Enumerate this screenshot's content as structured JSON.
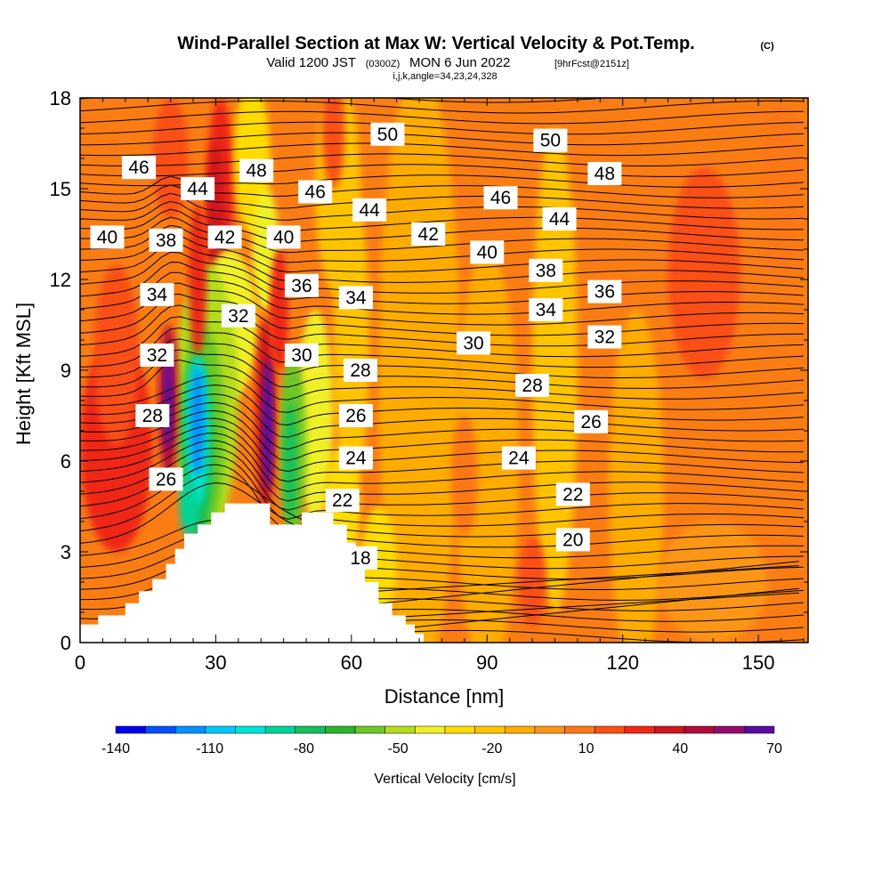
{
  "title": "Wind-Parallel Section at Max W: Vertical Velocity & Pot.Temp.",
  "title_mark": "(C)",
  "subtitle_a": "Valid 1200 JST",
  "subtitle_b": "(0300Z)",
  "subtitle_c": "MON 6 Jun 2022",
  "subtitle_d": "[9hrFcst@2151z]",
  "subtitle_line3": "i,j,k,angle=34,23,24,328",
  "chart_data": {
    "type": "contour",
    "xlabel": "Distance [nm]",
    "ylabel": "Height [Kft MSL]",
    "xlim": [
      0,
      161
    ],
    "ylim": [
      0,
      18
    ],
    "xticks": [
      0,
      30,
      60,
      90,
      120,
      150
    ],
    "yticks": [
      0,
      3,
      6,
      9,
      12,
      15,
      18
    ],
    "colorbar": {
      "label": "Vertical Velocity [cm/s]",
      "tick_labels": [
        "-140",
        "-110",
        "-80",
        "-50",
        "-20",
        "10",
        "40",
        "70"
      ],
      "levels": [
        -140,
        -130,
        -120,
        -110,
        -100,
        -90,
        -80,
        -70,
        -60,
        -50,
        -40,
        -30,
        -20,
        -10,
        0,
        10,
        20,
        30,
        40,
        50,
        60,
        70
      ],
      "colors": [
        "#0000ee",
        "#0050ff",
        "#0090ff",
        "#00c8ff",
        "#00e4d4",
        "#00d39a",
        "#14c05a",
        "#2cb42c",
        "#6cc828",
        "#b4dc1e",
        "#f0f028",
        "#ffdc00",
        "#ffc400",
        "#ffac00",
        "#fc9614",
        "#fc7814",
        "#fa5014",
        "#f02814",
        "#d2141e",
        "#b40a3c",
        "#960a6e",
        "#5a0aa0"
      ]
    },
    "theta_contour_labels": [
      {
        "value": "46",
        "x": 13,
        "y": 15.7
      },
      {
        "value": "44",
        "x": 26,
        "y": 15.0
      },
      {
        "value": "48",
        "x": 39,
        "y": 15.6
      },
      {
        "value": "46",
        "x": 52,
        "y": 14.9
      },
      {
        "value": "50",
        "x": 68,
        "y": 16.8
      },
      {
        "value": "50",
        "x": 104,
        "y": 16.6
      },
      {
        "value": "48",
        "x": 116,
        "y": 15.5
      },
      {
        "value": "46",
        "x": 93,
        "y": 14.7
      },
      {
        "value": "44",
        "x": 64,
        "y": 14.3
      },
      {
        "value": "44",
        "x": 106,
        "y": 14.0
      },
      {
        "value": "40",
        "x": 6,
        "y": 13.4
      },
      {
        "value": "38",
        "x": 19,
        "y": 13.3
      },
      {
        "value": "42",
        "x": 32,
        "y": 13.4
      },
      {
        "value": "40",
        "x": 45,
        "y": 13.4
      },
      {
        "value": "42",
        "x": 77,
        "y": 13.5
      },
      {
        "value": "40",
        "x": 90,
        "y": 12.9
      },
      {
        "value": "38",
        "x": 103,
        "y": 12.3
      },
      {
        "value": "36",
        "x": 116,
        "y": 11.6
      },
      {
        "value": "34",
        "x": 17,
        "y": 11.5
      },
      {
        "value": "36",
        "x": 49,
        "y": 11.8
      },
      {
        "value": "34",
        "x": 61,
        "y": 11.4
      },
      {
        "value": "34",
        "x": 103,
        "y": 11.0
      },
      {
        "value": "32",
        "x": 35,
        "y": 10.8
      },
      {
        "value": "32",
        "x": 116,
        "y": 10.1
      },
      {
        "value": "30",
        "x": 87,
        "y": 9.9
      },
      {
        "value": "32",
        "x": 17,
        "y": 9.5
      },
      {
        "value": "30",
        "x": 49,
        "y": 9.5
      },
      {
        "value": "28",
        "x": 62,
        "y": 9.0
      },
      {
        "value": "28",
        "x": 100,
        "y": 8.5
      },
      {
        "value": "28",
        "x": 16,
        "y": 7.5
      },
      {
        "value": "26",
        "x": 61,
        "y": 7.5
      },
      {
        "value": "26",
        "x": 113,
        "y": 7.3
      },
      {
        "value": "24",
        "x": 61,
        "y": 6.1
      },
      {
        "value": "24",
        "x": 97,
        "y": 6.1
      },
      {
        "value": "26",
        "x": 19,
        "y": 5.4
      },
      {
        "value": "22",
        "x": 58,
        "y": 4.7
      },
      {
        "value": "22",
        "x": 109,
        "y": 4.9
      },
      {
        "value": "20",
        "x": 109,
        "y": 3.4
      },
      {
        "value": "18",
        "x": 62,
        "y": 2.8
      }
    ],
    "terrain_nm_kft": [
      [
        0,
        0.6
      ],
      [
        4,
        0.6
      ],
      [
        4,
        0.9
      ],
      [
        10,
        0.9
      ],
      [
        10,
        1.3
      ],
      [
        13,
        1.3
      ],
      [
        13,
        1.7
      ],
      [
        16,
        1.7
      ],
      [
        16,
        2.1
      ],
      [
        19,
        2.1
      ],
      [
        19,
        2.6
      ],
      [
        21,
        2.6
      ],
      [
        21,
        3.1
      ],
      [
        23,
        3.1
      ],
      [
        23,
        3.6
      ],
      [
        26,
        3.6
      ],
      [
        26,
        3.9
      ],
      [
        29,
        3.9
      ],
      [
        29,
        4.3
      ],
      [
        32,
        4.3
      ],
      [
        32,
        4.6
      ],
      [
        42,
        4.6
      ],
      [
        42,
        3.9
      ],
      [
        49,
        3.9
      ],
      [
        49,
        4.3
      ],
      [
        56,
        4.3
      ],
      [
        56,
        3.9
      ],
      [
        59,
        3.9
      ],
      [
        59,
        3.3
      ],
      [
        61,
        3.3
      ],
      [
        61,
        2.6
      ],
      [
        63,
        2.6
      ],
      [
        63,
        2.0
      ],
      [
        66,
        2.0
      ],
      [
        66,
        1.3
      ],
      [
        69,
        1.3
      ],
      [
        69,
        0.9
      ],
      [
        72,
        0.9
      ],
      [
        72,
        0.6
      ],
      [
        74,
        0.6
      ],
      [
        74,
        0.3
      ],
      [
        76,
        0.3
      ],
      [
        76,
        0
      ],
      [
        161,
        0
      ]
    ]
  }
}
